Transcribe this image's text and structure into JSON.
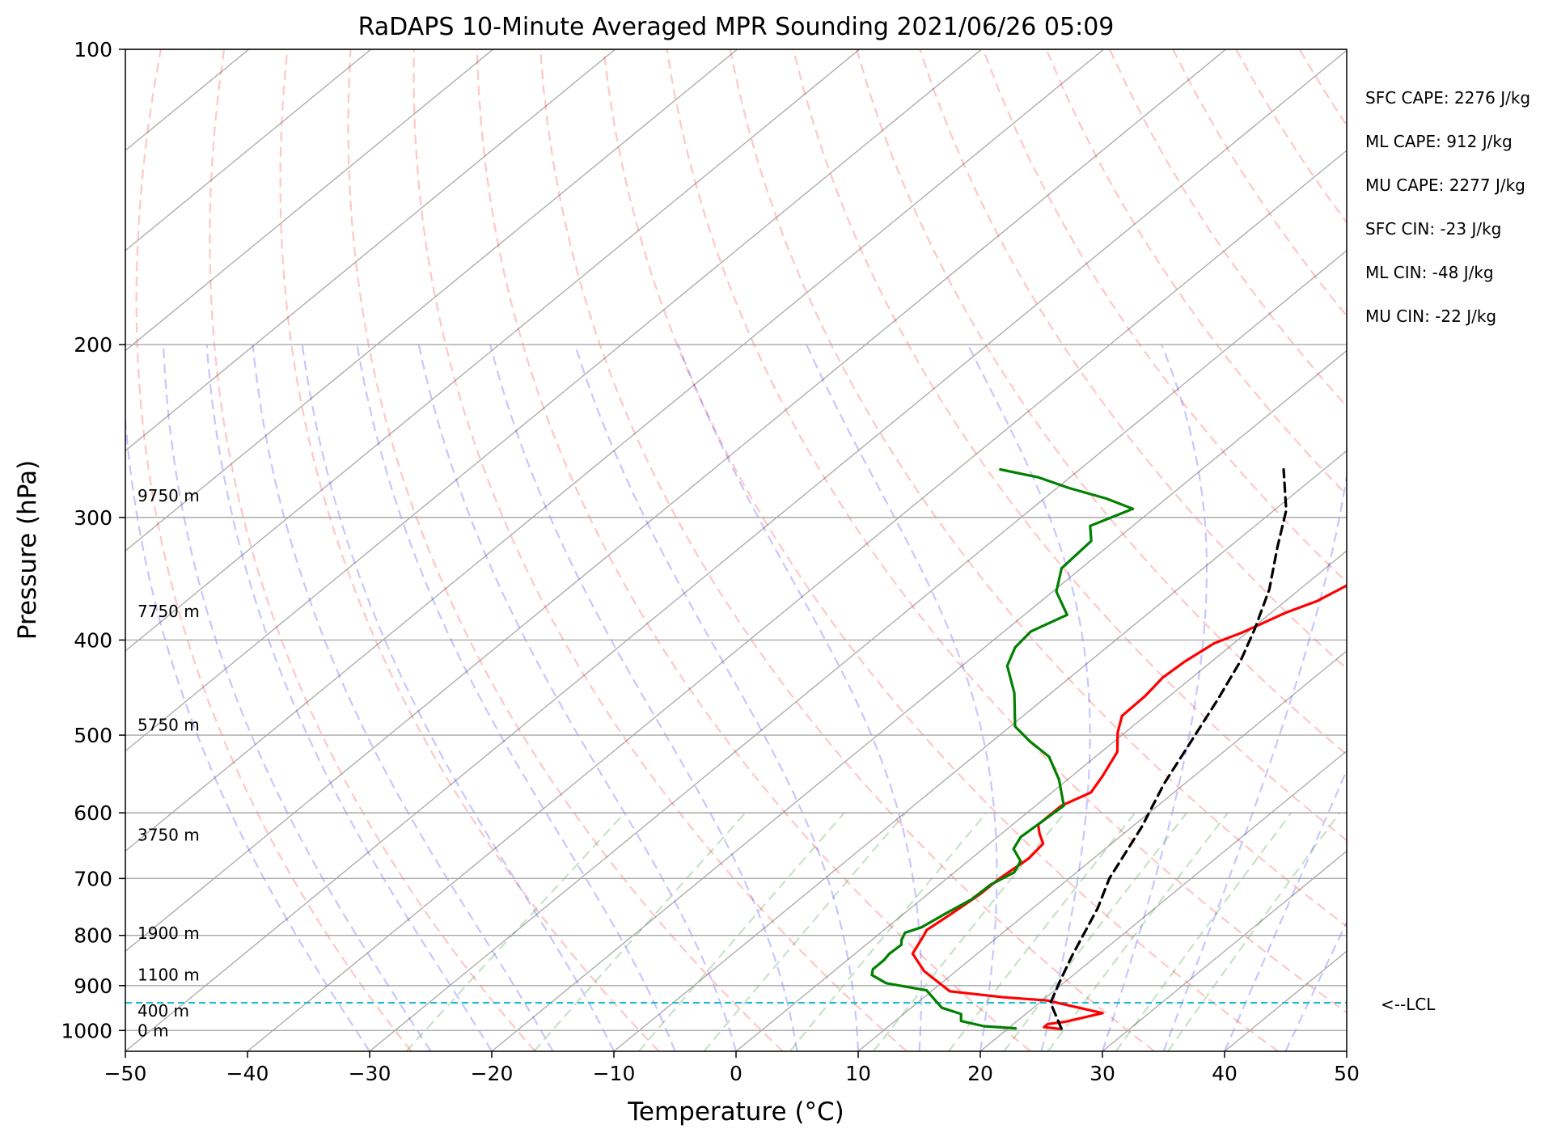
{
  "chart_data": {
    "type": "line",
    "chart_kind": "skew-t log-p",
    "title": "RaDAPS 10-Minute Averaged MPR Sounding 2021/06/26 05:09",
    "xlabel": "Temperature (°C)",
    "ylabel": "Pressure (hPa)",
    "xlim": [
      -50,
      50
    ],
    "ylim": [
      1050,
      100
    ],
    "y_scale": "log",
    "grid": true,
    "x_ticks": [
      -50,
      -40,
      -30,
      -20,
      -10,
      0,
      10,
      20,
      30,
      40,
      50
    ],
    "x_tick_labels": [
      "−50",
      "−40",
      "−30",
      "−20",
      "−10",
      "0",
      "10",
      "20",
      "30",
      "40",
      "50"
    ],
    "y_ticks": [
      1000,
      900,
      800,
      700,
      600,
      500,
      400,
      300,
      200,
      100
    ],
    "y_tick_labels": [
      "1000",
      "900",
      "800",
      "700",
      "600",
      "500",
      "400",
      "300",
      "200",
      "100"
    ],
    "height_labels": [
      {
        "label": "0 m",
        "pressure": 1000
      },
      {
        "label": "400 m",
        "pressure": 955
      },
      {
        "label": "1100 m",
        "pressure": 878
      },
      {
        "label": "1900 m",
        "pressure": 796
      },
      {
        "label": "3750 m",
        "pressure": 632
      },
      {
        "label": "5750 m",
        "pressure": 488
      },
      {
        "label": "7750 m",
        "pressure": 374
      },
      {
        "label": "9750 m",
        "pressure": 285
      }
    ],
    "indices": [
      "SFC CAPE: 2276 J/kg",
      "ML CAPE: 912 J/kg",
      "MU CAPE: 2277 J/kg",
      "SFC CIN: -23 J/kg",
      "ML CIN: -48 J/kg",
      "MU CIN: -22 J/kg"
    ],
    "lcl": {
      "label": "<--LCL",
      "pressure": 937,
      "color": "#17becf"
    },
    "series": [
      {
        "color": "#ff0000",
        "points": [
          [
            24.2,
            996
          ],
          [
            22.8,
            992
          ],
          [
            22.8,
            985
          ],
          [
            24.0,
            980
          ],
          [
            26.2,
            960
          ],
          [
            20.4,
            932
          ],
          [
            16.5,
            925
          ],
          [
            11.5,
            912
          ],
          [
            7.4,
            870
          ],
          [
            4.7,
            835
          ],
          [
            3.8,
            800
          ],
          [
            3.5,
            790
          ],
          [
            3.9,
            760
          ],
          [
            4.3,
            725
          ],
          [
            4.3,
            700
          ],
          [
            4.7,
            668
          ],
          [
            4.4,
            645
          ],
          [
            3.1,
            630
          ],
          [
            2.1,
            617
          ],
          [
            2.1,
            590
          ],
          [
            3.2,
            572
          ],
          [
            2.5,
            550
          ],
          [
            1.3,
            520
          ],
          [
            -0.6,
            497
          ],
          [
            -1.9,
            478
          ],
          [
            -2.0,
            456
          ],
          [
            -2.4,
            437
          ],
          [
            -2.2,
            421
          ],
          [
            -1.6,
            403
          ],
          [
            -0.4,
            393
          ],
          [
            1.2,
            375
          ],
          [
            2.6,
            365
          ],
          [
            3.8,
            347
          ],
          [
            7.7,
            328
          ],
          [
            8.4,
            317
          ],
          [
            8.9,
            301
          ],
          [
            10.9,
            292
          ],
          [
            11.4,
            283
          ],
          [
            11.1,
            275
          ]
        ]
      },
      {
        "color": "#008000",
        "points": [
          [
            20.6,
            995
          ],
          [
            17.8,
            990
          ],
          [
            15.4,
            978
          ],
          [
            14.7,
            962
          ],
          [
            12.5,
            948
          ],
          [
            9.5,
            910
          ],
          [
            5.5,
            895
          ],
          [
            3.5,
            878
          ],
          [
            3.0,
            866
          ],
          [
            3.0,
            848
          ],
          [
            2.8,
            835
          ],
          [
            2.9,
            818
          ],
          [
            2.4,
            808
          ],
          [
            2.0,
            795
          ],
          [
            2.8,
            785
          ],
          [
            3.4,
            760
          ],
          [
            4.1,
            735
          ],
          [
            4.2,
            710
          ],
          [
            4.9,
            690
          ],
          [
            4.3,
            672
          ],
          [
            2.5,
            653
          ],
          [
            1.9,
            635
          ],
          [
            2.1,
            612
          ],
          [
            2.3,
            590
          ],
          [
            -0.7,
            555
          ],
          [
            -3.8,
            526
          ],
          [
            -6.8,
            508
          ],
          [
            -9.6,
            490
          ],
          [
            -13.0,
            453
          ],
          [
            -16.3,
            425
          ],
          [
            -17.5,
            407
          ],
          [
            -17.8,
            392
          ],
          [
            -16.5,
            377
          ],
          [
            -19.7,
            357
          ],
          [
            -21.6,
            338
          ],
          [
            -21.8,
            324
          ],
          [
            -21.9,
            317
          ],
          [
            -23.5,
            306
          ],
          [
            -21.7,
            294
          ],
          [
            -24.9,
            287
          ],
          [
            -29.0,
            280
          ],
          [
            -32.6,
            273
          ],
          [
            -36.5,
            268
          ]
        ]
      },
      {
        "color": "#000000",
        "style": "dashed",
        "points": [
          [
            24.4,
            996
          ],
          [
            20.9,
            937
          ],
          [
            19.5,
            890
          ],
          [
            18.0,
            840
          ],
          [
            15.3,
            750
          ],
          [
            13.3,
            700
          ],
          [
            10.8,
            620
          ],
          [
            8.3,
            560
          ],
          [
            6.2,
            505
          ],
          [
            4.3,
            460
          ],
          [
            2.3,
            420
          ],
          [
            0.3,
            390
          ],
          [
            -2.5,
            355
          ],
          [
            -6.0,
            322
          ],
          [
            -9.0,
            295
          ],
          [
            -13.3,
            268
          ]
        ]
      }
    ]
  }
}
